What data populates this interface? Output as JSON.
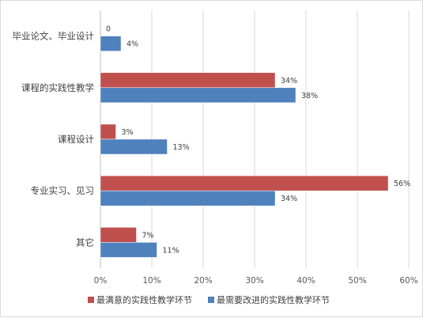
{
  "chart_data": {
    "type": "bar",
    "orientation": "horizontal",
    "categories": [
      "毕业论文、毕业设计",
      "课程的实践性教学",
      "课程设计",
      "专业实习、见习",
      "其它"
    ],
    "series": [
      {
        "name": "最满意的实践性教学环节",
        "color": "#C0504D",
        "values": [
          0,
          34,
          3,
          56,
          7
        ],
        "labels": [
          "0",
          "34%",
          "3%",
          "56%",
          "7%"
        ]
      },
      {
        "name": "最需要改进的实践性教学环节",
        "color": "#4F81BD",
        "values": [
          4,
          38,
          13,
          34,
          11
        ],
        "labels": [
          "4%",
          "38%",
          "13%",
          "34%",
          "11%"
        ]
      }
    ],
    "xlim": [
      0,
      60
    ],
    "xticks": [
      "0%",
      "10%",
      "20%",
      "30%",
      "40%",
      "50%",
      "60%"
    ],
    "grid": true,
    "legend_position": "bottom"
  }
}
